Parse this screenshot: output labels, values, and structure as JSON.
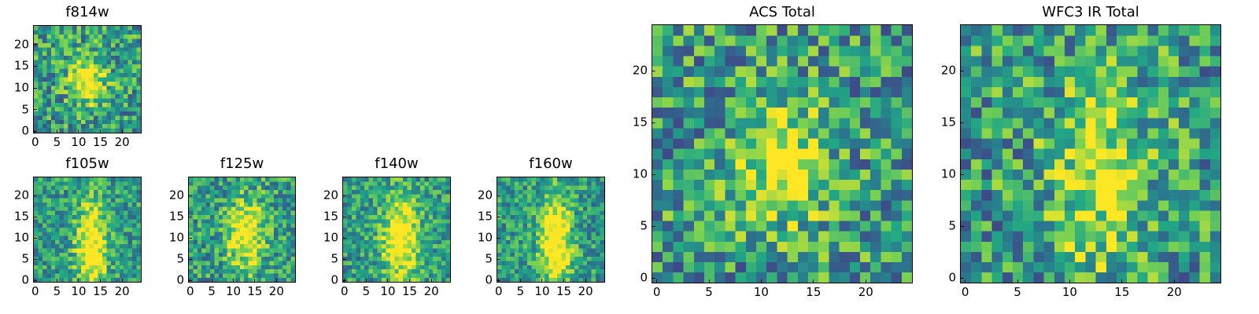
{
  "colormap": [
    "#440154",
    "#414487",
    "#2a788e",
    "#22a884",
    "#7ad151",
    "#fde725"
  ],
  "chart_data": [
    {
      "type": "heatmap",
      "title": "f814w",
      "size": 25,
      "xlim": [
        0,
        25
      ],
      "ylim": [
        0,
        25
      ],
      "xticks": [
        "0",
        "5",
        "10",
        "15",
        "20"
      ],
      "yticks": [
        "0",
        "5",
        "10",
        "15",
        "20"
      ],
      "seed": 11,
      "noise": 0.5,
      "peak": {
        "x": 12,
        "y": 12,
        "sx": 3,
        "sy": 4,
        "amp": 0.55
      }
    },
    {
      "type": "heatmap",
      "title": "f105w",
      "size": 25,
      "xlim": [
        0,
        25
      ],
      "ylim": [
        0,
        25
      ],
      "xticks": [
        "0",
        "5",
        "10",
        "15",
        "20"
      ],
      "yticks": [
        "0",
        "5",
        "10",
        "15",
        "20"
      ],
      "seed": 23,
      "noise": 0.4,
      "peak": {
        "x": 13,
        "y": 8,
        "sx": 2.5,
        "sy": 8,
        "amp": 0.6
      }
    },
    {
      "type": "heatmap",
      "title": "f125w",
      "size": 25,
      "xlim": [
        0,
        25
      ],
      "ylim": [
        0,
        25
      ],
      "xticks": [
        "0",
        "5",
        "10",
        "15",
        "20"
      ],
      "yticks": [
        "0",
        "5",
        "10",
        "15",
        "20"
      ],
      "seed": 37,
      "noise": 0.45,
      "peak": {
        "x": 13,
        "y": 11,
        "sx": 3,
        "sy": 6,
        "amp": 0.55
      }
    },
    {
      "type": "heatmap",
      "title": "f140w",
      "size": 25,
      "xlim": [
        0,
        25
      ],
      "ylim": [
        0,
        25
      ],
      "xticks": [
        "0",
        "5",
        "10",
        "15",
        "20"
      ],
      "yticks": [
        "0",
        "5",
        "10",
        "15",
        "20"
      ],
      "seed": 41,
      "noise": 0.4,
      "peak": {
        "x": 13,
        "y": 10,
        "sx": 3,
        "sy": 7,
        "amp": 0.6
      }
    },
    {
      "type": "heatmap",
      "title": "f160w",
      "size": 25,
      "xlim": [
        0,
        25
      ],
      "ylim": [
        0,
        25
      ],
      "xticks": [
        "0",
        "5",
        "10",
        "15",
        "20"
      ],
      "yticks": [
        "0",
        "5",
        "10",
        "15",
        "20"
      ],
      "seed": 53,
      "noise": 0.4,
      "peak": {
        "x": 13,
        "y": 9,
        "sx": 2.5,
        "sy": 8,
        "amp": 0.65
      }
    },
    {
      "type": "heatmap",
      "title": "ACS Total",
      "size": 25,
      "xlim": [
        0,
        25
      ],
      "ylim": [
        0,
        25
      ],
      "xticks": [
        "0",
        "5",
        "10",
        "15",
        "20"
      ],
      "yticks": [
        "0",
        "5",
        "10",
        "15",
        "20"
      ],
      "seed": 67,
      "noise": 0.55,
      "peak": {
        "x": 12,
        "y": 11,
        "sx": 3,
        "sy": 4,
        "amp": 0.5
      }
    },
    {
      "type": "heatmap",
      "title": "WFC3 IR Total",
      "size": 25,
      "xlim": [
        0,
        25
      ],
      "ylim": [
        0,
        25
      ],
      "xticks": [
        "0",
        "5",
        "10",
        "15",
        "20"
      ],
      "yticks": [
        "0",
        "5",
        "10",
        "15",
        "20"
      ],
      "seed": 79,
      "noise": 0.55,
      "peak": {
        "x": 13,
        "y": 10,
        "sx": 3,
        "sy": 6,
        "amp": 0.45
      }
    }
  ]
}
